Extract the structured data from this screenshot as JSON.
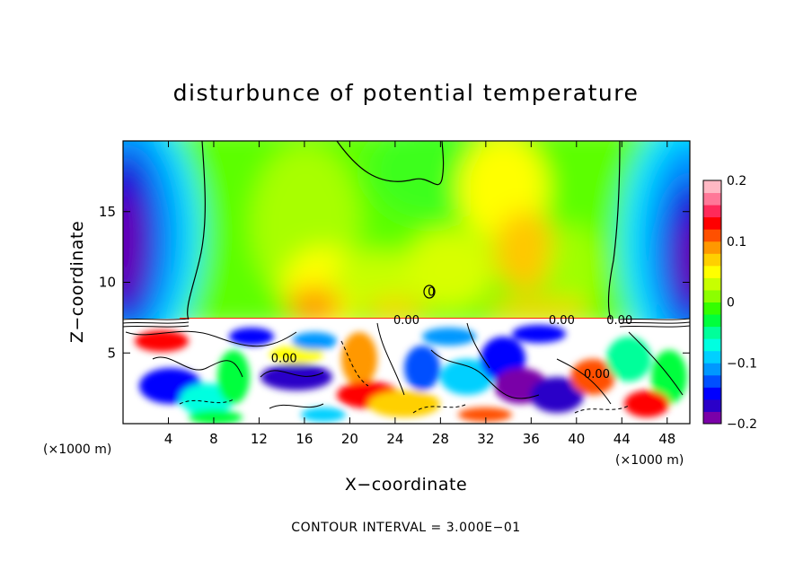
{
  "chart_data": {
    "type": "heatmap",
    "title": "disturbunce of potential temperature",
    "xlabel": "X−coordinate",
    "ylabel": "Z−coordinate",
    "x_unit_label": "(×1000 m)",
    "x_unit_label_right": "(×1000 m)",
    "xlim": [
      0,
      50
    ],
    "ylim": [
      0,
      20
    ],
    "x_ticks": [
      4,
      8,
      12,
      16,
      20,
      24,
      28,
      32,
      36,
      40,
      44,
      48
    ],
    "x_tick_labels": [
      "4",
      "8",
      "12",
      "16",
      "20",
      "24",
      "28",
      "32",
      "36",
      "40",
      "44",
      "48"
    ],
    "y_ticks": [
      5,
      10,
      15
    ],
    "y_tick_labels": [
      "5",
      "10",
      "15"
    ],
    "colorbar": {
      "min": -0.2,
      "max": 0.2,
      "tick_values": [
        0.2,
        0.1,
        0,
        -0.1,
        -0.2
      ],
      "tick_labels": [
        "0.2",
        "0.1",
        "0",
        "−0.1",
        "−0.2"
      ],
      "colors": [
        "#7a00a8",
        "#2a00c8",
        "#0000ff",
        "#0050ff",
        "#0098ff",
        "#00d0ff",
        "#00ffe0",
        "#00ff9a",
        "#00ff3c",
        "#34ff00",
        "#8cff00",
        "#c8ff00",
        "#ffff00",
        "#ffd000",
        "#ff9800",
        "#ff5000",
        "#ff0000",
        "#ff2a5a",
        "#ff7898",
        "#ffb8c4"
      ]
    },
    "contour_interval_text": "CONTOUR INTERVAL = 3.000E−01",
    "contour_labels": [
      {
        "text": "0.00",
        "x": 25.0,
        "z": 7.3
      },
      {
        "text": "0.00",
        "x": 38.7,
        "z": 7.3
      },
      {
        "text": "0.00",
        "x": 43.8,
        "z": 7.3
      },
      {
        "text": "0.00",
        "x": 14.2,
        "z": 4.6
      },
      {
        "text": "0.00",
        "x": 41.8,
        "z": 3.5
      },
      {
        "text": "0",
        "x": 27.2,
        "z": 9.3
      }
    ],
    "field_description_points": {
      "stratosphere_positive_max_x": [
        16,
        35
      ],
      "negative_edges_x": [
        0,
        50
      ]
    }
  }
}
